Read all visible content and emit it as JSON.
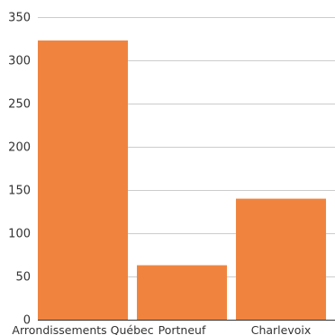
{
  "chart_data": {
    "type": "bar",
    "categories": [
      "Arrondissements Québec",
      "Portneuf",
      "Charlevoix"
    ],
    "values": [
      323,
      63,
      140
    ],
    "title": "",
    "xlabel": "",
    "ylabel": "",
    "ylim": [
      0,
      350
    ],
    "yticks": [
      0,
      50,
      100,
      150,
      200,
      250,
      300,
      350
    ],
    "grid": true,
    "legend": "none",
    "bar_color": "#f0843f",
    "grid_color": "#cccccc",
    "axis_color": "#333333",
    "text_color": "#333333"
  }
}
